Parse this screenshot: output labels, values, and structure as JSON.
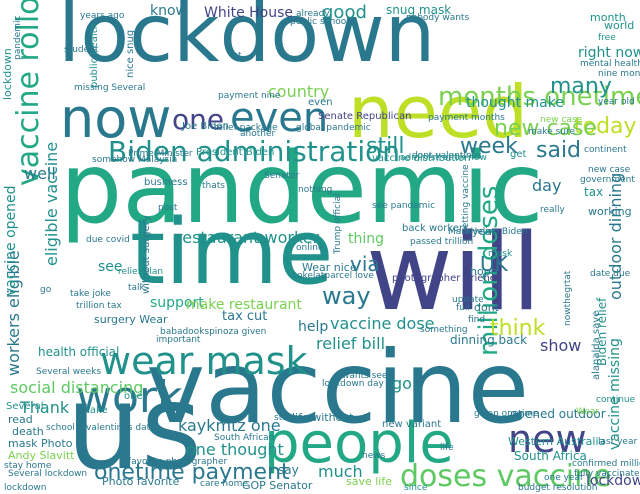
{
  "words": [
    {
      "text": "lockdown",
      "color": "#2a788e"
    },
    {
      "text": "pandemic",
      "color": "#22a884"
    },
    {
      "text": "vaccine",
      "color": "#2a788e"
    },
    {
      "text": "will",
      "color": "#414487"
    },
    {
      "text": "time",
      "color": "#21918c"
    },
    {
      "text": "us",
      "color": "#2a788e"
    },
    {
      "text": "people",
      "color": "#22a884"
    },
    {
      "text": "need",
      "color": "#bddf26"
    },
    {
      "text": "now",
      "color": "#2a788e"
    },
    {
      "text": "wear mask",
      "color": "#21918c"
    },
    {
      "text": "work",
      "color": "#2a788e"
    },
    {
      "text": "even",
      "color": "#2a788e"
    },
    {
      "text": "Biden administration",
      "color": "#21918c"
    },
    {
      "text": "vaccine rollout",
      "color": "#22a884"
    },
    {
      "text": "months onetime",
      "color": "#7ad151"
    },
    {
      "text": "onetime payment",
      "color": "#2a788e"
    },
    {
      "text": "new",
      "color": "#414487"
    },
    {
      "text": "doses vaccine",
      "color": "#5ec962"
    },
    {
      "text": "million doses",
      "color": "#22a884"
    },
    {
      "text": "one",
      "color": "#414487"
    },
    {
      "text": "week",
      "color": "#2a788e"
    },
    {
      "text": "said",
      "color": "#2a788e"
    },
    {
      "text": "many",
      "color": "#21918c"
    },
    {
      "text": "still",
      "color": "#21918c"
    },
    {
      "text": "UK",
      "color": "#2a788e"
    },
    {
      "text": "via",
      "color": "#2a788e"
    },
    {
      "text": "way",
      "color": "#2a788e"
    },
    {
      "text": "think",
      "color": "#bddf26"
    },
    {
      "text": "restaurant worker",
      "color": "#21918c"
    },
    {
      "text": "vaccine dose",
      "color": "#21918c"
    },
    {
      "text": "social distancing",
      "color": "#5ec962"
    },
    {
      "text": "kaykmtz one",
      "color": "#2a788e"
    },
    {
      "text": "one thought",
      "color": "#21918c"
    },
    {
      "text": "today",
      "color": "#bddf26"
    },
    {
      "text": "new case",
      "color": "#7ad151"
    },
    {
      "text": "good",
      "color": "#21918c"
    },
    {
      "text": "eligible vaccine",
      "color": "#21918c"
    },
    {
      "text": "workers eligible",
      "color": "#2a788e"
    },
    {
      "text": "show",
      "color": "#414487"
    },
    {
      "text": "Thank",
      "color": "#21918c"
    },
    {
      "text": "relief bill",
      "color": "#21918c"
    },
    {
      "text": "help",
      "color": "#2a788e"
    },
    {
      "text": "support",
      "color": "#22a884"
    },
    {
      "text": "make restaurant",
      "color": "#7ad151"
    },
    {
      "text": "thing",
      "color": "#5ec962"
    },
    {
      "text": "country",
      "color": "#7ad151"
    },
    {
      "text": "White House",
      "color": "#414487"
    },
    {
      "text": "know",
      "color": "#2a788e"
    },
    {
      "text": "President Biden",
      "color": "#21918c"
    },
    {
      "text": "Senate Republican",
      "color": "#414487"
    },
    {
      "text": "snug mask",
      "color": "#21918c"
    },
    {
      "text": "well",
      "color": "#2a788e"
    },
    {
      "text": "vaccine opened",
      "color": "#21918c"
    },
    {
      "text": "day",
      "color": "#2a788e"
    },
    {
      "text": "thought make",
      "color": "#21918c"
    },
    {
      "text": "much",
      "color": "#21918c"
    },
    {
      "text": "see",
      "color": "#21918c"
    },
    {
      "text": "tax cut",
      "color": "#2a788e"
    },
    {
      "text": "dinning back",
      "color": "#2a788e"
    },
    {
      "text": "go",
      "color": "#21918c"
    },
    {
      "text": "health official",
      "color": "#21918c"
    },
    {
      "text": "say",
      "color": "#2a788e"
    },
    {
      "text": "South Africa",
      "color": "#21918c"
    },
    {
      "text": "opened outdoor",
      "color": "#2a788e"
    },
    {
      "text": "Photo favorite",
      "color": "#2a788e"
    },
    {
      "text": "Wear nice",
      "color": "#2a788e"
    },
    {
      "text": "GOP Senator",
      "color": "#2a788e"
    },
    {
      "text": "Western Australia",
      "color": "#21918c"
    },
    {
      "text": "life without",
      "color": "#2a788e"
    },
    {
      "text": "surgery Wear",
      "color": "#2a788e"
    },
    {
      "text": "Andy Slavitt",
      "color": "#7ad151"
    },
    {
      "text": "mask Photo",
      "color": "#2a788e"
    },
    {
      "text": "death",
      "color": "#2a788e"
    },
    {
      "text": "read",
      "color": "#2a788e"
    },
    {
      "text": "lockdown",
      "color": "#414487"
    },
    {
      "text": "working",
      "color": "#2a788e"
    },
    {
      "text": "year",
      "color": "#2a788e"
    },
    {
      "text": "dont",
      "color": "#2a788e"
    },
    {
      "text": "back workers",
      "color": "#2a788e"
    },
    {
      "text": "vaccine distribution",
      "color": "#21918c"
    },
    {
      "text": "even",
      "color": "#2a788e"
    },
    {
      "text": "new variant",
      "color": "#2a788e"
    },
    {
      "text": "save life",
      "color": "#7ad151"
    },
    {
      "text": "public health",
      "color": "#21918c"
    },
    {
      "text": "Joe Biden",
      "color": "#2a788e"
    },
    {
      "text": "take",
      "color": "#21918c"
    },
    {
      "text": "one",
      "color": "#21918c"
    },
    {
      "text": "business",
      "color": "#2a788e"
    },
    {
      "text": "photographer Ariene",
      "color": "#414487"
    },
    {
      "text": "Biden relief",
      "color": "#21918c"
    },
    {
      "text": "outdoor dinning",
      "color": "#2a788e"
    },
    {
      "text": "vaccine missing",
      "color": "#21918c"
    },
    {
      "text": "month",
      "color": "#21918c"
    },
    {
      "text": "world",
      "color": "#21918c"
    },
    {
      "text": "right now",
      "color": "#21918c"
    },
    {
      "text": "mental health",
      "color": "#2a788e"
    },
    {
      "text": "nine months",
      "color": "#2a788e"
    },
    {
      "text": "free",
      "color": "#21918c"
    },
    {
      "text": "get",
      "color": "#21918c"
    },
    {
      "text": "new case",
      "color": "#7ad151"
    },
    {
      "text": "tax",
      "color": "#21918c"
    },
    {
      "text": "hope",
      "color": "#2a788e"
    },
    {
      "text": "Trump official",
      "color": "#2a788e"
    },
    {
      "text": "see pandemic",
      "color": "#2a788e"
    },
    {
      "text": "passed trillion",
      "color": "#2a788e"
    },
    {
      "text": "cokelatparcel love",
      "color": "#2a788e"
    },
    {
      "text": "relief plan",
      "color": "#21918c"
    },
    {
      "text": "take joke",
      "color": "#2a788e"
    },
    {
      "text": "trillion tax",
      "color": "#2a788e"
    },
    {
      "text": "talk",
      "color": "#2a788e"
    },
    {
      "text": "important",
      "color": "#2a788e"
    },
    {
      "text": "without surgery",
      "color": "#2a788e"
    },
    {
      "text": "MaraHelino Biden",
      "color": "#2a788e"
    },
    {
      "text": "babadookspinoza given",
      "color": "#2a788e"
    },
    {
      "text": "state",
      "color": "#2a788e"
    },
    {
      "text": "Several weeks",
      "color": "#2a788e"
    },
    {
      "text": "South African",
      "color": "#2a788e"
    },
    {
      "text": "valentines date",
      "color": "#2a788e"
    },
    {
      "text": "favorite photographer",
      "color": "#2a788e"
    },
    {
      "text": "stay home",
      "color": "#2a788e"
    },
    {
      "text": "lockdown",
      "color": "#2a788e"
    },
    {
      "text": "since",
      "color": "#21918c"
    },
    {
      "text": "care home",
      "color": "#2a788e"
    },
    {
      "text": "budget resolution",
      "color": "#2a788e"
    },
    {
      "text": "dont valentines",
      "color": "#2a788e"
    },
    {
      "text": "year old",
      "color": "#2a788e"
    },
    {
      "text": "Wear",
      "color": "#7ad151"
    },
    {
      "text": "continue",
      "color": "#21918c"
    },
    {
      "text": "alanalda save",
      "color": "#2a788e"
    },
    {
      "text": "date due",
      "color": "#2a788e"
    },
    {
      "text": "nowthegrtat",
      "color": "#2a788e"
    },
    {
      "text": "given onetime",
      "color": "#2a788e"
    },
    {
      "text": "news",
      "color": "#2a788e"
    },
    {
      "text": "one year",
      "color": "#2a788e"
    },
    {
      "text": "getting vaccine",
      "color": "#2a788e"
    },
    {
      "text": "mask",
      "color": "#21918c"
    },
    {
      "text": "full",
      "color": "#2a788e"
    },
    {
      "text": "update",
      "color": "#2a788e"
    },
    {
      "text": "find",
      "color": "#2a788e"
    },
    {
      "text": "something",
      "color": "#2a788e"
    },
    {
      "text": "nothing",
      "color": "#2a788e"
    },
    {
      "text": "really",
      "color": "#2a788e"
    },
    {
      "text": "thats",
      "color": "#2a788e"
    },
    {
      "text": "post",
      "color": "#2a788e"
    },
    {
      "text": "online",
      "color": "#2a788e"
    },
    {
      "text": "due covid",
      "color": "#2a788e"
    },
    {
      "text": "Several",
      "color": "#21918c"
    },
    {
      "text": "school",
      "color": "#2a788e"
    },
    {
      "text": "payment months",
      "color": "#2a788e"
    },
    {
      "text": "payment nine",
      "color": "#2a788e"
    },
    {
      "text": "already",
      "color": "#2a788e"
    },
    {
      "text": "nobody wants",
      "color": "#2a788e"
    },
    {
      "text": "public school",
      "color": "#2a788e"
    },
    {
      "text": "missing Several",
      "color": "#2a788e"
    },
    {
      "text": "years ago",
      "color": "#2a788e"
    },
    {
      "text": "nice snug",
      "color": "#2a788e"
    },
    {
      "text": "student",
      "color": "#2a788e"
    },
    {
      "text": "let",
      "color": "#2a788e"
    },
    {
      "text": "Senator",
      "color": "#2a788e"
    },
    {
      "text": "global pandemic",
      "color": "#2a788e"
    },
    {
      "text": "another",
      "color": "#2a788e"
    },
    {
      "text": "Prime Minister",
      "color": "#2a788e"
    },
    {
      "text": "somehow Malaysia",
      "color": "#2a788e"
    },
    {
      "text": "relief package",
      "color": "#2a788e"
    },
    {
      "text": "administration now",
      "color": "#21918c"
    },
    {
      "text": "make sure",
      "color": "#2a788e"
    },
    {
      "text": "new case",
      "color": "#2a788e"
    },
    {
      "text": "continent",
      "color": "#2a788e"
    },
    {
      "text": "government",
      "color": "#2a788e"
    },
    {
      "text": "wants see",
      "color": "#2a788e"
    },
    {
      "text": "lockdown day",
      "color": "#2a788e"
    },
    {
      "text": "life",
      "color": "#2a788e"
    },
    {
      "text": "last year",
      "color": "#2a788e"
    },
    {
      "text": "confirmed million",
      "color": "#2a788e"
    },
    {
      "text": "fully vaccinated",
      "color": "#2a788e"
    },
    {
      "text": "Several lockdown",
      "color": "#2a788e"
    },
    {
      "text": "lockdown",
      "color": "#21918c"
    },
    {
      "text": "pandemic",
      "color": "#2a788e"
    },
    {
      "text": "go",
      "color": "#2a788e"
    }
  ]
}
